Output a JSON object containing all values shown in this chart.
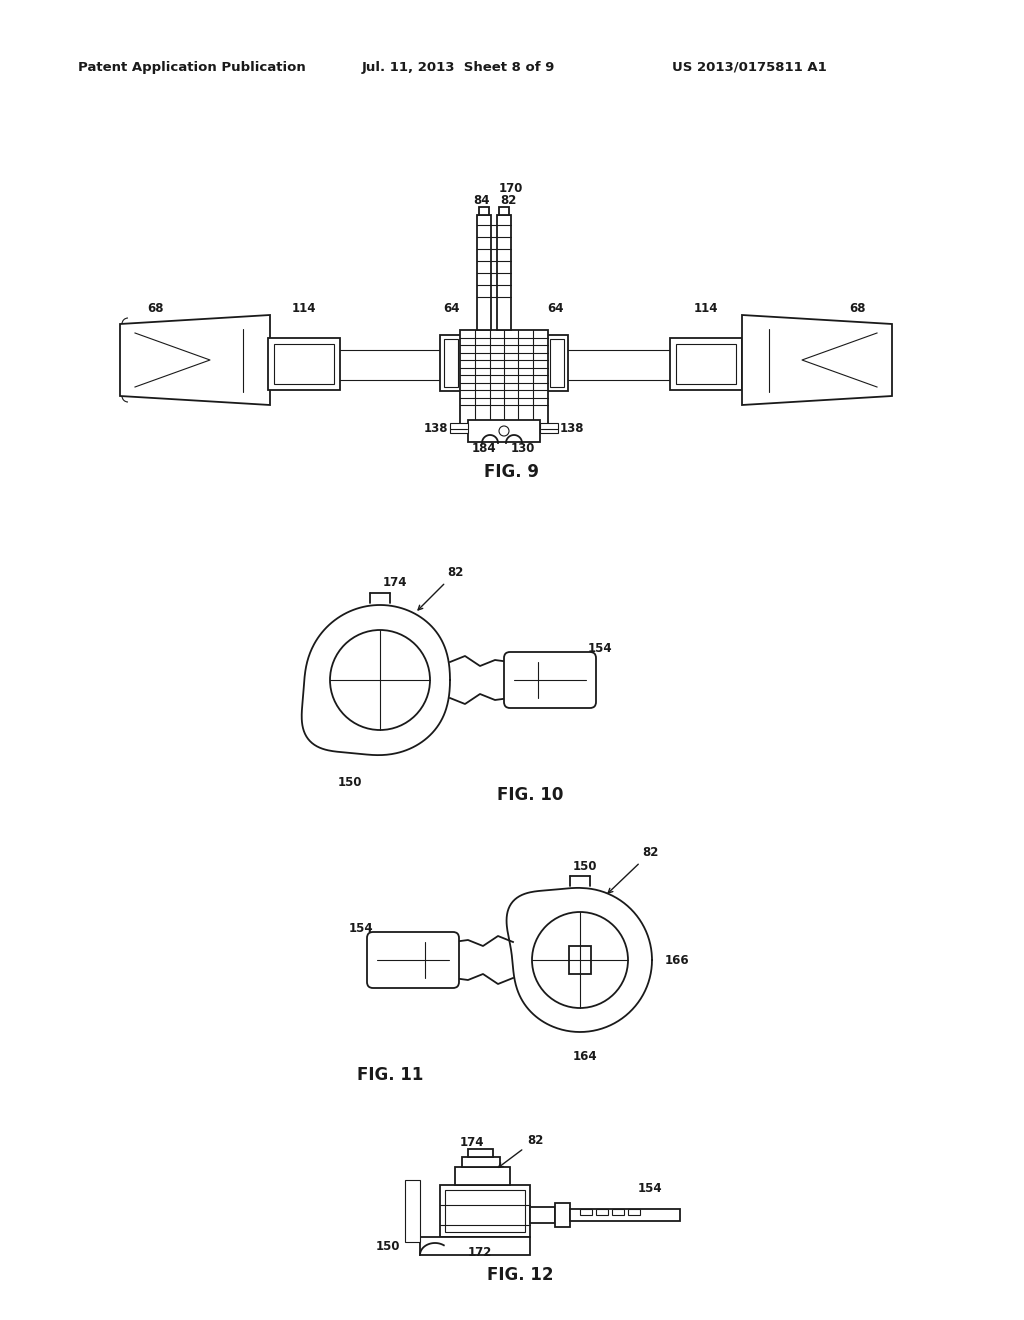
{
  "background_color": "#ffffff",
  "header_text": "Patent Application Publication",
  "header_date": "Jul. 11, 2013  Sheet 8 of 9",
  "header_patent": "US 2013/0175811 A1",
  "line_color": "#1a1a1a",
  "line_width": 1.3,
  "lw_thin": 0.8,
  "lw_thick": 2.0
}
